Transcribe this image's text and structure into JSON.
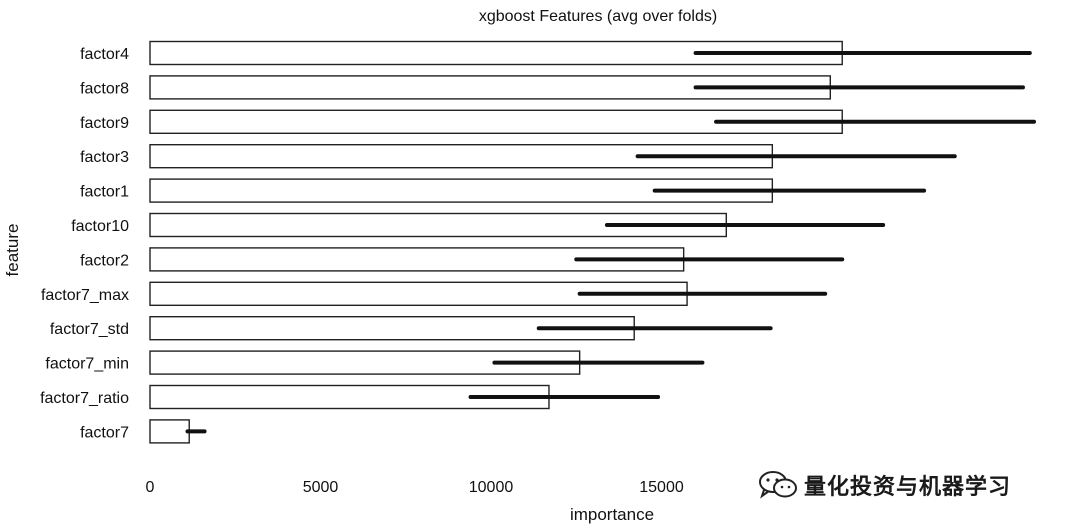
{
  "chart_data": {
    "type": "bar",
    "title": "xgboost Features (avg over folds)",
    "xlabel": "importance",
    "ylabel": "feature",
    "xlim": [
      0,
      18000
    ],
    "xticks": [
      0,
      5000,
      10000,
      15000
    ],
    "grid": false,
    "categories": [
      "factor4",
      "factor8",
      "factor9",
      "factor3",
      "factor1",
      "factor10",
      "factor2",
      "factor7_max",
      "factor7_std",
      "factor7_min",
      "factor7_ratio",
      "factor7"
    ],
    "values": [
      20300,
      19950,
      20300,
      18250,
      18250,
      16900,
      15650,
      15750,
      14200,
      12600,
      11700,
      1150
    ],
    "error_bars": [
      [
        16000,
        25800
      ],
      [
        16000,
        25600
      ],
      [
        16600,
        26000
      ],
      [
        14300,
        23600
      ],
      [
        14800,
        22700
      ],
      [
        13400,
        21500
      ],
      [
        12500,
        20300
      ],
      [
        12600,
        19800
      ],
      [
        11400,
        18200
      ],
      [
        10100,
        16200
      ],
      [
        9400,
        14900
      ],
      [
        1100,
        1600
      ]
    ]
  },
  "watermark": {
    "icon": "wechat-icon",
    "text": "量化投资与机器学习"
  }
}
